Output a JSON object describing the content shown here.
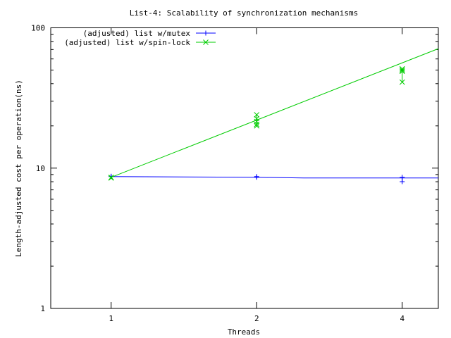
{
  "chart_data": {
    "type": "line",
    "title": "List-4: Scalability of synchronization mechanisms",
    "xlabel": "Threads",
    "ylabel": "Length-adjusted cost per operation(ns)",
    "x_scale": "log2",
    "y_scale": "log10",
    "xlim": [
      0.75,
      4.75
    ],
    "ylim": [
      1,
      100
    ],
    "x_ticks": [
      1,
      2,
      4
    ],
    "x_tick_labels": [
      "1",
      "2",
      "4"
    ],
    "y_ticks": [
      1,
      10,
      100
    ],
    "y_tick_labels": [
      "1",
      "10",
      "100"
    ],
    "grid": false,
    "legend_position": "top-left",
    "series": [
      {
        "name": "(adjusted) list w/mutex",
        "color": "#0000ff",
        "marker": "plus",
        "points": [
          [
            1,
            8.7
          ],
          [
            1,
            8.75
          ],
          [
            2,
            8.6
          ],
          [
            2,
            8.7
          ],
          [
            4,
            8.0
          ],
          [
            4,
            8.6
          ]
        ],
        "steps": [
          [
            1,
            8.7
          ],
          [
            2,
            8.6
          ],
          [
            2.5,
            8.5
          ],
          [
            4.75,
            8.5
          ]
        ]
      },
      {
        "name": "(adjusted) list w/spin-lock",
        "color": "#00cc00",
        "marker": "x",
        "points": [
          [
            1,
            8.5
          ],
          [
            1,
            8.6
          ],
          [
            2,
            20
          ],
          [
            2,
            20.5
          ],
          [
            2,
            21.5
          ],
          [
            2,
            22.5
          ],
          [
            2,
            24
          ],
          [
            4,
            41
          ],
          [
            4,
            49
          ],
          [
            4,
            50
          ],
          [
            4,
            51
          ]
        ],
        "fit": [
          [
            1,
            8.6
          ],
          [
            4.75,
            71
          ]
        ]
      }
    ]
  }
}
